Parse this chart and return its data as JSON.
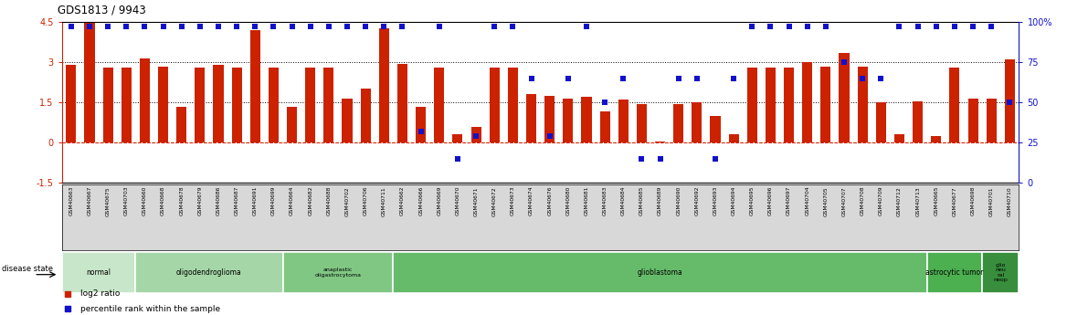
{
  "title": "GDS1813 / 9943",
  "samples": [
    "GSM40663",
    "GSM40667",
    "GSM40675",
    "GSM40703",
    "GSM40660",
    "GSM40668",
    "GSM40678",
    "GSM40679",
    "GSM40686",
    "GSM40687",
    "GSM40691",
    "GSM40699",
    "GSM40664",
    "GSM40682",
    "GSM40688",
    "GSM40702",
    "GSM40706",
    "GSM40711",
    "GSM40662",
    "GSM40666",
    "GSM40669",
    "GSM40670",
    "GSM40671",
    "GSM40672",
    "GSM40673",
    "GSM40674",
    "GSM40676",
    "GSM40680",
    "GSM40681",
    "GSM40683",
    "GSM40684",
    "GSM40685",
    "GSM40689",
    "GSM40690",
    "GSM40692",
    "GSM40693",
    "GSM40694",
    "GSM40695",
    "GSM40696",
    "GSM40697",
    "GSM40704",
    "GSM40705",
    "GSM40707",
    "GSM40708",
    "GSM40709",
    "GSM40712",
    "GSM40713",
    "GSM40665",
    "GSM40677",
    "GSM40698",
    "GSM40701",
    "GSM40710"
  ],
  "log2_ratio": [
    2.9,
    4.55,
    2.8,
    2.8,
    3.15,
    2.85,
    1.35,
    2.8,
    2.9,
    2.8,
    4.2,
    2.8,
    1.35,
    2.8,
    2.8,
    1.65,
    2.0,
    4.25,
    2.95,
    1.35,
    2.8,
    0.3,
    0.6,
    2.8,
    2.8,
    1.8,
    1.75,
    1.65,
    1.7,
    1.15,
    1.6,
    1.45,
    0.05,
    1.45,
    1.5,
    1.0,
    0.3,
    2.8,
    2.8,
    2.8,
    3.0,
    2.85,
    3.35,
    2.85,
    1.5,
    0.3,
    1.55,
    0.25,
    2.8,
    1.65,
    1.65,
    3.1
  ],
  "percentile": [
    97,
    97,
    97,
    97,
    97,
    97,
    97,
    97,
    97,
    97,
    97,
    97,
    97,
    97,
    97,
    97,
    97,
    97,
    97,
    32,
    97,
    15,
    29,
    97,
    97,
    65,
    29,
    65,
    97,
    50,
    65,
    15,
    15,
    65,
    65,
    15,
    65,
    97,
    97,
    97,
    97,
    97,
    75,
    65,
    65,
    97,
    97,
    97,
    97,
    97,
    97,
    50
  ],
  "disease_groups": [
    {
      "label": "normal",
      "start": 0,
      "end": 4,
      "color": "#c8e6c9"
    },
    {
      "label": "oligodendroglioma",
      "start": 4,
      "end": 12,
      "color": "#a5d6a7"
    },
    {
      "label": "anaplastic\noligastrocytoma",
      "start": 12,
      "end": 18,
      "color": "#81c784"
    },
    {
      "label": "glioblastoma",
      "start": 18,
      "end": 47,
      "color": "#66bb6a"
    },
    {
      "label": "astrocytic tumor",
      "start": 47,
      "end": 50,
      "color": "#4caf50"
    },
    {
      "label": "glio\nneu\nral\nneop",
      "start": 50,
      "end": 52,
      "color": "#388e3c"
    }
  ],
  "ylim_left": [
    -1.5,
    4.5
  ],
  "ylim_right": [
    0,
    100
  ],
  "yticks_left": [
    -1.5,
    0.0,
    1.5,
    3.0,
    4.5
  ],
  "yticks_right": [
    0,
    25,
    50,
    75,
    100
  ],
  "bar_color": "#cc2200",
  "dot_color": "#1111cc",
  "legend_log2": "log2 ratio",
  "legend_pct": "percentile rank within the sample",
  "fig_width": 11.68,
  "fig_height": 3.45
}
